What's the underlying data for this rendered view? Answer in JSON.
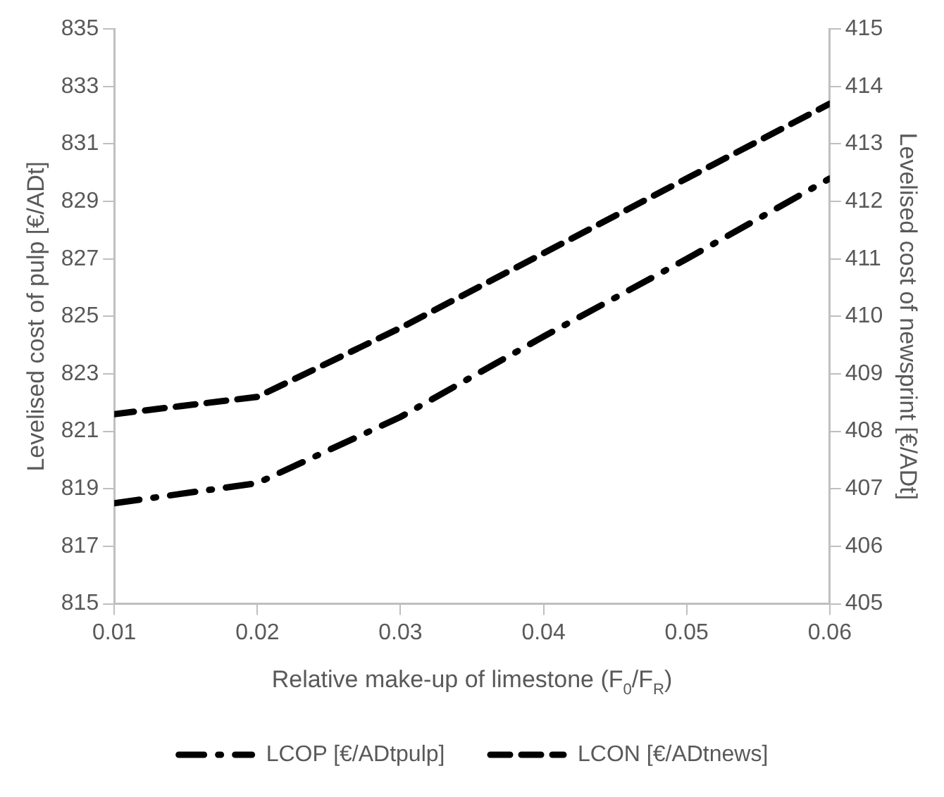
{
  "chart_data": {
    "type": "line",
    "xlabel": "Relative make-up of limestone (F$_{0}$/F$_{R}$)",
    "ylabel": "Levelised cost of pulp [€/ADt]",
    "y2label": "Levelised cost of newsprint [€/ADt]",
    "x": [
      0.01,
      0.02,
      0.03,
      0.04,
      0.05,
      0.06
    ],
    "series": [
      {
        "name": "LCOP [€/ADtpulp]",
        "color": "#000000",
        "line_style": "dashdot",
        "values": [
          818.5,
          819.2,
          821.5,
          824.3,
          827.0,
          829.8
        ]
      },
      {
        "name": "LCON [€/ADtnews]",
        "color": "#000000",
        "line_style": "dashed",
        "axis": "y2",
        "values": [
          408.3,
          408.6,
          409.8,
          411.1,
          412.4,
          413.7
        ]
      }
    ],
    "xlim": [
      0.01,
      0.06
    ],
    "xticks": [
      {
        "value": 0.01,
        "label": "0.01"
      },
      {
        "value": 0.02,
        "label": "0.02"
      },
      {
        "value": 0.03,
        "label": "0.03"
      },
      {
        "value": 0.04,
        "label": "0.04"
      },
      {
        "value": 0.05,
        "label": "0.05"
      },
      {
        "value": 0.06,
        "label": "0.06"
      }
    ],
    "ylim": [
      815,
      835
    ],
    "yticks": [
      815,
      817,
      819,
      821,
      823,
      825,
      827,
      829,
      831,
      833,
      835
    ],
    "y2lim": [
      405,
      415
    ],
    "y2ticks": [
      405,
      406,
      407,
      408,
      409,
      410,
      411,
      412,
      413,
      414,
      415
    ],
    "grid": false,
    "legend": "bottom",
    "marker": "none"
  }
}
